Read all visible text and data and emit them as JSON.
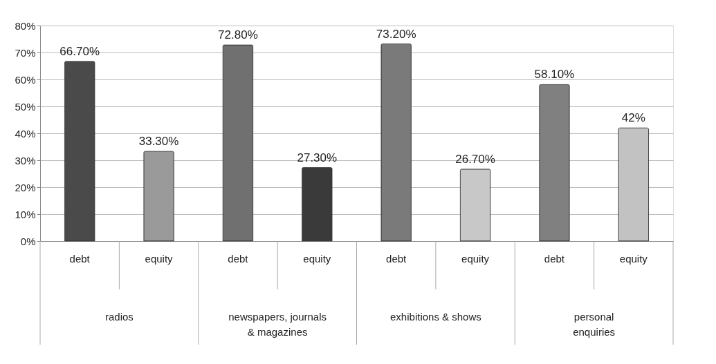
{
  "chart_data": {
    "type": "bar",
    "categories": [
      "debt",
      "equity",
      "debt",
      "equity",
      "debt",
      "equity",
      "debt",
      "equity"
    ],
    "values": [
      66.7,
      33.3,
      72.8,
      27.3,
      73.2,
      26.7,
      58.1,
      42
    ],
    "colors": [
      "#4a4a4a",
      "#9a9a9a",
      "#707070",
      "#3a3a3a",
      "#7a7a7a",
      "#c8c8c8",
      "#808080",
      "#c2c2c2"
    ],
    "value_labels": [
      "66.70%",
      "33.30%",
      "72.80%",
      "27.30%",
      "73.20%",
      "26.70%",
      "58.10%",
      "42%"
    ],
    "annotations": [
      "radios",
      "newspapers, journals\n& magazines",
      "exhibitions & shows",
      "personal\nenquiries"
    ],
    "ylim": [
      0,
      80
    ],
    "yticks": [
      {
        "value": 0,
        "label": "0%"
      },
      {
        "value": 10,
        "label": "10%"
      },
      {
        "value": 20,
        "label": "20%"
      },
      {
        "value": 30,
        "label": "30%"
      },
      {
        "value": 40,
        "label": "40%"
      },
      {
        "value": 50,
        "label": "50%"
      },
      {
        "value": 60,
        "label": "60%"
      },
      {
        "value": 70,
        "label": "70%"
      },
      {
        "value": 80,
        "label": "80%"
      }
    ],
    "grid": "y"
  }
}
